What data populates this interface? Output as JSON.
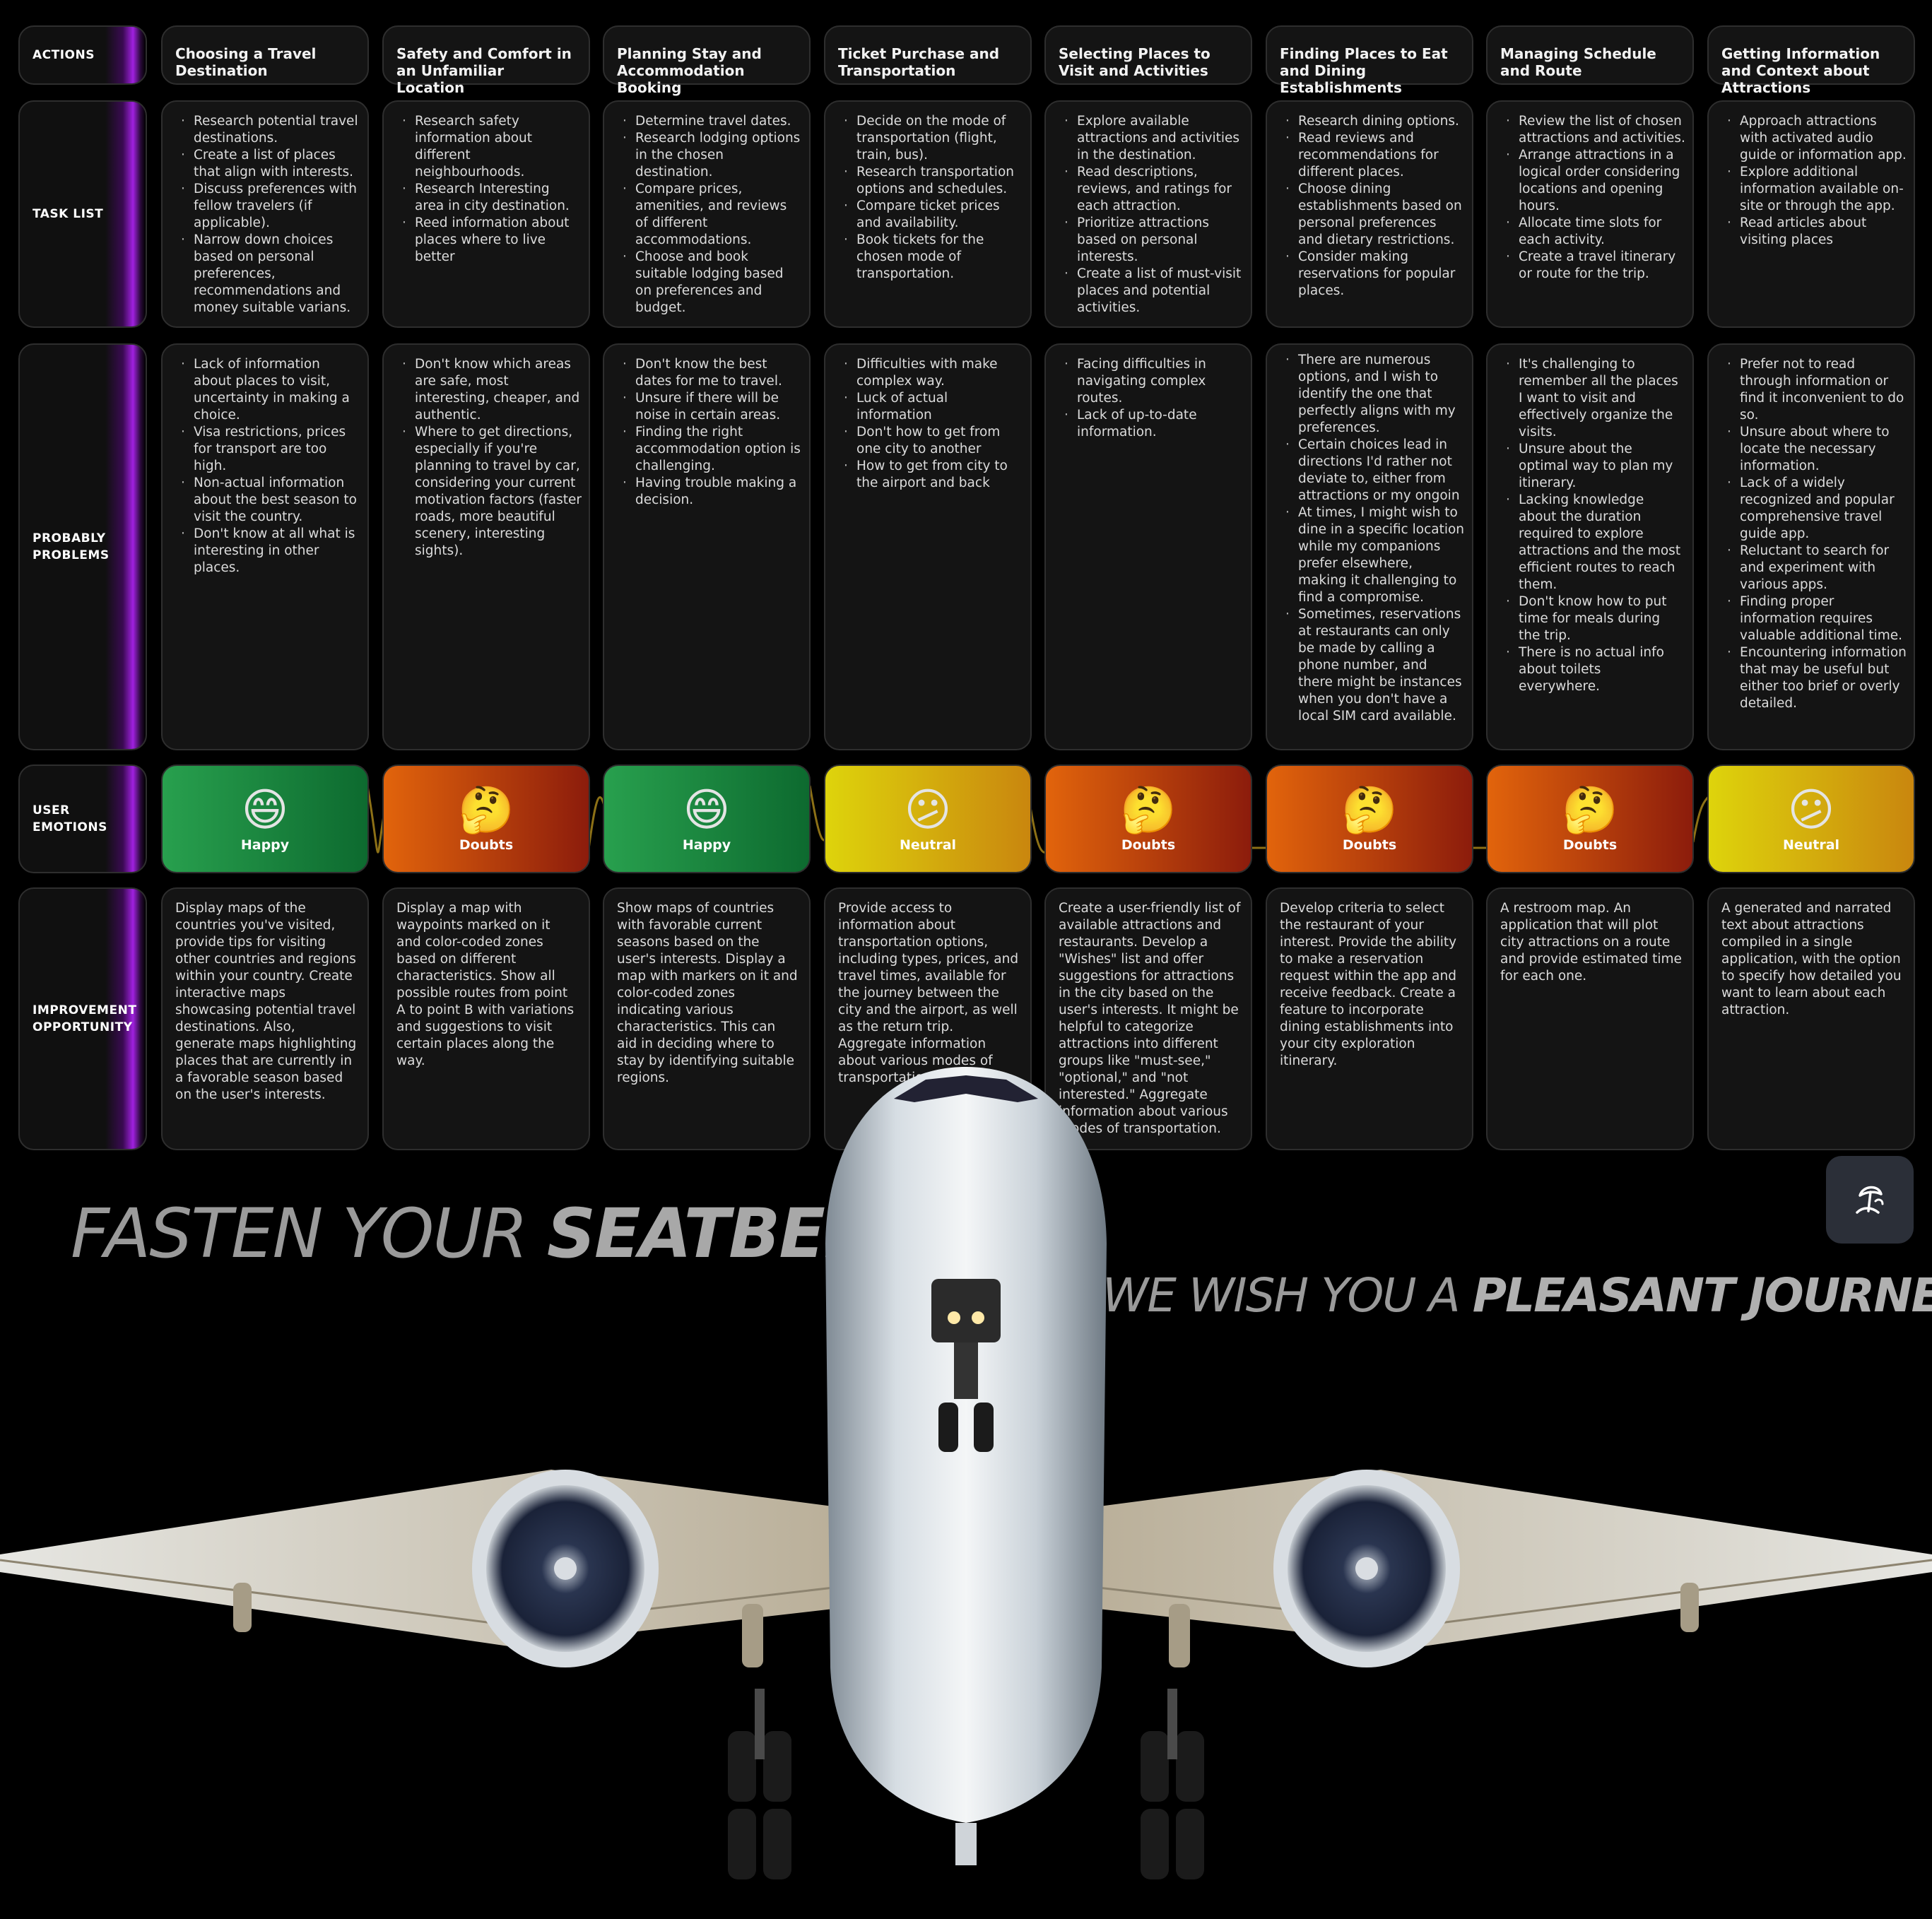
{
  "row_labels": {
    "actions": "ACTIONS",
    "task_list": "TASK LIST",
    "problems": "PROBABLY\nPROBLEMS",
    "emotions": "USER\nEMOTIONS",
    "improvement": "IMPROVEMENT\nOPPORTUNITY"
  },
  "stages": [
    {
      "action": "Choosing a Travel Destination",
      "tasks": [
        "Research potential travel destinations.",
        "Create a list of places that align with interests.",
        "Discuss preferences with fellow travelers (if applicable).",
        "Narrow down choices based on personal preferences, recommendations and money suitable varians."
      ],
      "problems": [
        "Lack of information about places to visit, uncertainty in making a choice.",
        "Visa restrictions, prices for transport are too high.",
        "Non-actual information about the best season to visit the country.",
        "Don't know at all what is interesting in other places."
      ],
      "emotion": "Happy",
      "emoji": "😄",
      "improvement": "Display maps of the countries you've visited, provide tips for visiting other countries and regions within your country. Create interactive maps showcasing potential travel destinations. Also, generate maps highlighting places that are currently in a favorable season based on the user's interests."
    },
    {
      "action": "Safety and Comfort in an Unfamiliar Location",
      "tasks": [
        "Research safety information about different neighbourhoods.",
        "Research Interesting area in city destination.",
        "Reed information about places where to live better"
      ],
      "problems": [
        "Don't know which areas are safe, most interesting, cheaper, and authentic.",
        "Where to get directions, especially if you're planning to travel by car, considering your current motivation factors (faster roads, more beautiful scenery, interesting sights)."
      ],
      "emotion": "Doubts",
      "emoji": "🤔",
      "improvement": "Display a map with waypoints marked on it and color-coded zones based on different characteristics. Show all possible routes from point A to point B with variations and suggestions to visit certain places along the way."
    },
    {
      "action": "Planning Stay and Accommodation Booking",
      "tasks": [
        "Determine travel dates.",
        "Research lodging options in the chosen destination.",
        "Compare prices, amenities, and reviews of different accommodations.",
        "Choose and book suitable lodging based on preferences and budget."
      ],
      "problems": [
        "Don't know the best dates for me to travel.",
        "Unsure if there will be noise in certain areas.",
        "Finding the right accommodation option is challenging.",
        "Having trouble making a decision."
      ],
      "emotion": "Happy",
      "emoji": "😄",
      "improvement": "Show maps of countries with favorable current seasons based on the user's interests. Display a map with markers on it and color-coded zones indicating various characteristics. This can aid in deciding where to stay by identifying suitable regions."
    },
    {
      "action": "Ticket Purchase and Transportation",
      "tasks": [
        "Decide on the mode of transportation (flight, train, bus).",
        "Research transportation options and schedules.",
        "Compare ticket prices and availability.",
        "Book tickets for the chosen mode of transportation."
      ],
      "problems": [
        "Difficulties with make complex way.",
        "Luck of actual information",
        "Don't how to get from one city to another",
        "How to get from city to the airport and back"
      ],
      "emotion": "Neutral",
      "emoji": "😕",
      "improvement": "Provide access to information about transportation options, including types, prices, and travel times, available for the journey between the city and the airport, as well as the return trip. Aggregate information about various modes of transportation."
    },
    {
      "action": "Selecting Places to Visit and Activities",
      "tasks": [
        "Explore available attractions and activities in the destination.",
        "Read descriptions, reviews, and ratings for each attraction.",
        "Prioritize attractions based on personal interests.",
        "Create a list of must-visit places and potential activities."
      ],
      "problems": [
        "Facing difficulties in navigating complex routes.",
        "Lack of up-to-date information."
      ],
      "emotion": "Doubts",
      "emoji": "🤔",
      "improvement": "Create a user-friendly list of available attractions and restaurants. Develop a \"Wishes\" list and offer suggestions for attractions in the city based on the user's interests. It might be helpful to categorize attractions into different groups like \"must-see,\" \"optional,\" and \"not interested.\" Aggregate information about various modes of transportation."
    },
    {
      "action": "Finding Places to Eat and Dining Establishments",
      "tasks": [
        "Research dining options.",
        "Read reviews and recommendations for different places.",
        "Choose dining establishments based on personal preferences and dietary restrictions.",
        "Consider making reservations for popular places."
      ],
      "problems": [
        "There are numerous options, and I wish to identify the one that perfectly aligns with my preferences.",
        "Certain choices lead in directions I'd rather not deviate to, either from attractions or my ongoin",
        "At times, I might wish to dine in a specific location while my companions prefer elsewhere, making it challenging to find a compromise.",
        "Sometimes, reservations at restaurants can only be made by calling a phone number, and there might be instances when you don't have a local SIM card available."
      ],
      "emotion": "Doubts",
      "emoji": "🤔",
      "improvement": "Develop criteria to select the restaurant of your interest. Provide the ability to make a reservation request within the app and receive feedback. Create a feature to incorporate dining establishments into your city exploration itinerary."
    },
    {
      "action": "Managing Schedule and Route",
      "tasks": [
        "Review the list of chosen attractions and activities.",
        "Arrange attractions in a logical order considering locations and opening hours.",
        "Allocate time slots for each activity.",
        "Create a travel itinerary or route for the trip."
      ],
      "problems": [
        "It's challenging to remember all the places I want to visit and effectively organize the visits.",
        "Unsure about the optimal way to plan my itinerary.",
        "Lacking knowledge about the duration required to explore attractions and the most efficient routes to reach them.",
        "Don't know how to put time for meals during the trip.",
        "There is no actual info about toilets everywhere."
      ],
      "emotion": "Doubts",
      "emoji": "🤔",
      "improvement": "A restroom map. An application that will plot city attractions on a route and provide estimated time for each one."
    },
    {
      "action": "Getting Information and Context about Attractions",
      "tasks": [
        "Approach attractions with activated audio guide or information app.",
        "Explore additional information available on-site or through the app.",
        "Read articles about visiting places"
      ],
      "problems": [
        "Prefer not to read through information or find it inconvenient to do so.",
        "Unsure about where to locate the necessary information.",
        "Lack of a widely recognized and popular comprehensive travel guide app.",
        "Reluctant to search for and experiment with various apps.",
        "Finding proper information requires valuable additional time.",
        "Encountering information that may be useful but either too brief or overly detailed."
      ],
      "emotion": "Neutral",
      "emoji": "😕",
      "improvement": "A generated and narrated text about attractions compiled in a single application, with the option to specify how detailed you want to learn about each attraction."
    }
  ],
  "slogan": {
    "line1_thin": "FASTEN YOUR ",
    "line1_bold": "SEATBELT",
    "line2_thin": "WE WISH YOU A ",
    "line2_bold": "PLEASANT JOURNEY"
  },
  "colors": {
    "happy": "#1f8c45",
    "doubts": "#d4560c",
    "neutral": "#d8c20e",
    "accent": "#a021e0"
  },
  "icons": {
    "logo": "palm-umbrella-logo-icon",
    "plane": "airplane-illustration"
  }
}
